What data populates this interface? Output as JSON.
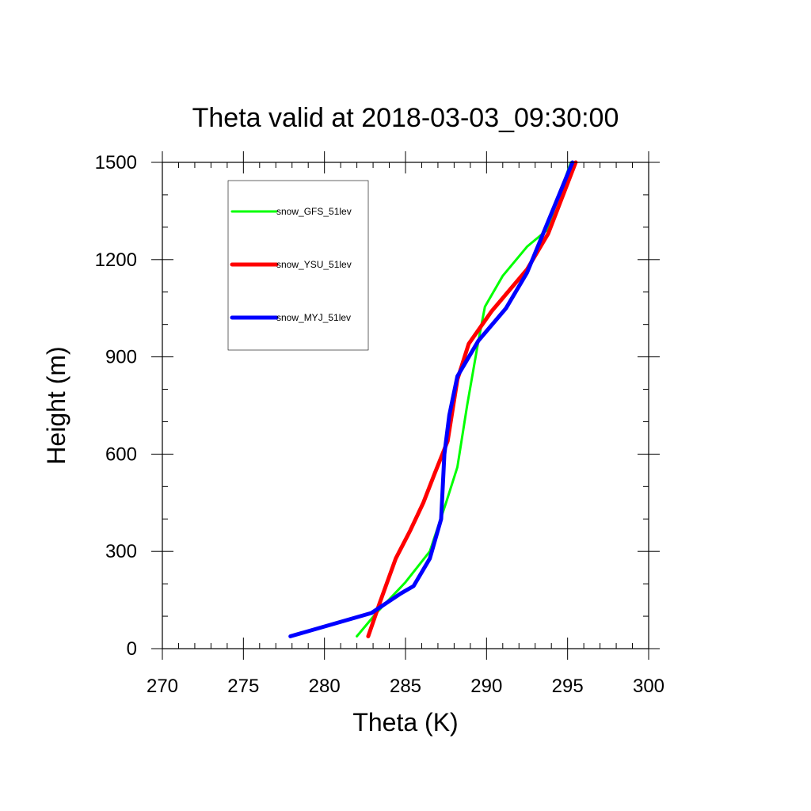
{
  "chart_data": {
    "type": "line",
    "title": "Theta valid at 2018-03-03_09:30:00",
    "xlabel": "Theta (K)",
    "ylabel": "Height (m)",
    "xlim": [
      270,
      300
    ],
    "ylim": [
      0,
      1500
    ],
    "x_ticks": [
      "270",
      "275",
      "280",
      "285",
      "290",
      "295",
      "300"
    ],
    "y_ticks": [
      "0",
      "300",
      "600",
      "900",
      "1200",
      "1500"
    ],
    "legend_position": "top-left",
    "grid": false,
    "series": [
      {
        "name": "snow_GFS_51lev",
        "color": "#00ff00",
        "x": [
          282.0,
          283.2,
          285.0,
          286.5,
          287.5,
          288.2,
          288.8,
          289.5,
          289.9,
          291.0,
          292.5,
          293.7,
          295.2
        ],
        "y": [
          38,
          110,
          205,
          300,
          450,
          560,
          750,
          950,
          1055,
          1150,
          1240,
          1290,
          1500
        ]
      },
      {
        "name": "snow_YSU_51lev",
        "color": "#ff0000",
        "x": [
          282.7,
          283.4,
          284.4,
          285.3,
          286.1,
          286.8,
          287.6,
          288.2,
          288.9,
          290.3,
          292.5,
          293.8,
          295.5
        ],
        "y": [
          38,
          140,
          278,
          365,
          450,
          540,
          640,
          830,
          940,
          1040,
          1170,
          1280,
          1500
        ]
      },
      {
        "name": "snow_MYJ_51lev",
        "color": "#0000ff",
        "x": [
          277.9,
          282.9,
          284.7,
          285.5,
          286.5,
          287.2,
          287.4,
          287.7,
          288.2,
          289.5,
          291.2,
          292.5,
          295.3
        ],
        "y": [
          38,
          110,
          170,
          193,
          278,
          400,
          600,
          720,
          840,
          950,
          1050,
          1160,
          1500
        ]
      }
    ]
  }
}
